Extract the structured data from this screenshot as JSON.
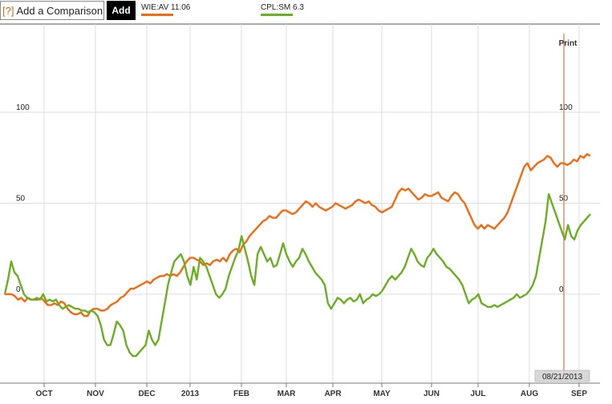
{
  "toolbar": {
    "help_icon": "[?]",
    "compare_placeholder": "Add a Comparison",
    "add_label": "Add"
  },
  "legend": [
    {
      "label": "WIE:AV  11.06",
      "color": "#f26a12"
    },
    {
      "label": "CPL:SM  6.3",
      "color": "#6aae23"
    }
  ],
  "print_label": "Print",
  "cursor_date": "08/21/2013",
  "chart_data": {
    "type": "line",
    "x_labels": [
      "OCT",
      "NOV",
      "DEC",
      "2013",
      "FEB",
      "MAR",
      "APR",
      "MAY",
      "JUN",
      "JUL",
      "AUG",
      "SEP"
    ],
    "y_ticks_left": [
      "100",
      "50",
      "0"
    ],
    "y_ticks_right": [
      "100",
      "50",
      "0"
    ],
    "ylim": [
      -35,
      105
    ],
    "grid": true,
    "series": [
      {
        "name": "WIE:AV",
        "color": "#f26a12",
        "values": [
          0,
          0,
          0,
          -1,
          -3,
          -2,
          -4,
          -2,
          -3,
          -3,
          -3,
          -2,
          -4,
          -6,
          -6,
          -5,
          -6,
          -4,
          -5,
          -8,
          -10,
          -11,
          -11,
          -10,
          -12,
          -12,
          -9,
          -8,
          -8,
          -9,
          -9,
          -8,
          -6,
          -5,
          -4,
          -2,
          -1,
          1,
          3,
          3,
          4,
          5,
          6,
          7,
          6,
          8,
          9,
          10,
          10,
          11,
          10,
          11,
          10,
          12,
          15,
          18,
          20,
          20,
          19,
          18,
          16,
          17,
          16,
          18,
          19,
          18,
          20,
          18,
          22,
          24,
          25,
          23,
          27,
          29,
          32,
          34,
          36,
          38,
          40,
          41,
          43,
          42,
          42,
          44,
          46,
          46,
          45,
          44,
          45,
          47,
          49,
          51,
          50,
          48,
          50,
          48,
          47,
          46,
          47,
          48,
          50,
          49,
          48,
          47,
          48,
          49,
          51,
          52,
          51,
          50,
          51,
          49,
          48,
          46,
          45,
          46,
          47,
          48,
          52,
          56,
          58,
          57,
          58,
          56,
          54,
          52,
          53,
          55,
          54,
          54,
          55,
          56,
          53,
          52,
          51,
          54,
          56,
          55,
          52,
          50,
          46,
          42,
          38,
          36,
          38,
          36,
          38,
          37,
          36,
          38,
          40,
          42,
          45,
          50,
          55,
          60,
          65,
          70,
          72,
          68,
          70,
          72,
          73,
          74,
          76,
          75,
          72,
          70,
          72,
          72,
          71,
          72,
          74,
          73,
          76,
          75,
          77,
          76
        ],
        "values_start_index": 0
      },
      {
        "name": "CPL:SM",
        "color": "#6aae23",
        "values": [
          0,
          8,
          18,
          12,
          10,
          5,
          0,
          -2,
          -3,
          -3,
          -2,
          -3,
          0,
          -4,
          -3,
          -4,
          -3,
          -6,
          -8,
          -7,
          -6,
          -7,
          -8,
          -8,
          -9,
          -9,
          -10,
          -9,
          -10,
          -12,
          -17,
          -25,
          -28,
          -28,
          -22,
          -15,
          -17,
          -20,
          -28,
          -32,
          -34,
          -34,
          -32,
          -30,
          -28,
          -20,
          -25,
          -28,
          -25,
          -15,
          -5,
          5,
          12,
          18,
          20,
          22,
          18,
          10,
          5,
          15,
          8,
          20,
          18,
          15,
          10,
          5,
          0,
          -2,
          0,
          3,
          10,
          15,
          20,
          24,
          32,
          25,
          18,
          10,
          5,
          22,
          26,
          22,
          18,
          20,
          15,
          16,
          22,
          28,
          22,
          18,
          15,
          18,
          20,
          25,
          22,
          18,
          15,
          12,
          10,
          8,
          5,
          -5,
          -8,
          -5,
          -2,
          -3,
          -5,
          -3,
          -2,
          -4,
          -3,
          0,
          -5,
          -3,
          -2,
          0,
          -1,
          0,
          2,
          5,
          8,
          10,
          8,
          10,
          12,
          15,
          20,
          25,
          22,
          18,
          16,
          15,
          20,
          22,
          25,
          22,
          20,
          18,
          15,
          14,
          12,
          10,
          8,
          5,
          0,
          -5,
          -3,
          -2,
          0,
          -5,
          -6,
          -7,
          -7,
          -6,
          -7,
          -6,
          -5,
          -4,
          -3,
          -2,
          0,
          -2,
          -1,
          0,
          2,
          5,
          10,
          20,
          30,
          40,
          55,
          50,
          45,
          40,
          35,
          30,
          38,
          32,
          30,
          35,
          38,
          40,
          42,
          44
        ]
      }
    ]
  }
}
